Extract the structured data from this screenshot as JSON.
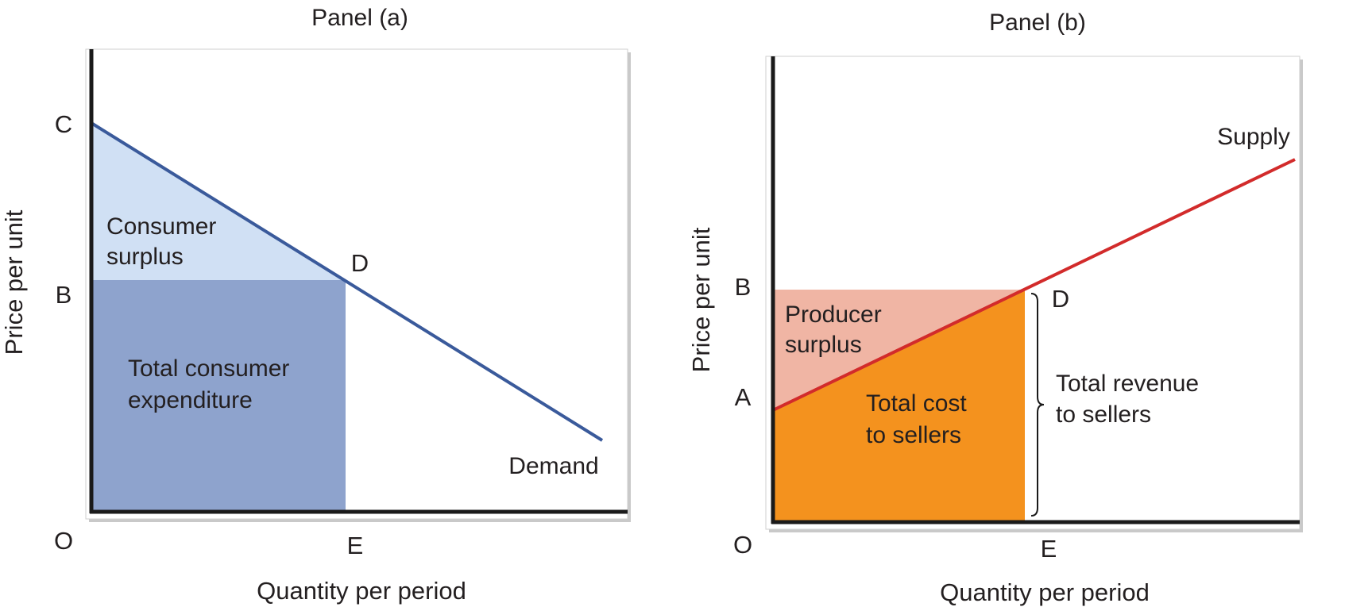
{
  "colors": {
    "demand_line": "#3a5a9b",
    "consumer_surplus_fill": "#d0e0f4",
    "consumer_expenditure_fill": "#8ea3cd",
    "supply_line": "#d22b2b",
    "producer_surplus_fill": "#f0b5a4",
    "total_cost_fill": "#f4921e",
    "axis": "#1a1a1a",
    "background": "#ffffff"
  },
  "panel_a": {
    "title": "Panel (a)",
    "y_label": "Price per unit",
    "x_label": "Quantity per period",
    "point_c": "C",
    "point_b": "B",
    "point_d": "D",
    "point_o": "O",
    "point_e": "E",
    "curve_label": "Demand",
    "surplus_label": [
      "Consumer",
      "surplus"
    ],
    "area_label": [
      "Total consumer",
      "expenditure"
    ]
  },
  "panel_b": {
    "title": "Panel (b)",
    "y_label": "Price per unit",
    "x_label": "Quantity per period",
    "point_b": "B",
    "point_a": "A",
    "point_d": "D",
    "point_o": "O",
    "point_e": "E",
    "curve_label": "Supply",
    "surplus_label": [
      "Producer",
      "surplus"
    ],
    "area_label": [
      "Total cost",
      "to sellers"
    ],
    "brace_label": [
      "Total revenue",
      "to sellers"
    ]
  }
}
